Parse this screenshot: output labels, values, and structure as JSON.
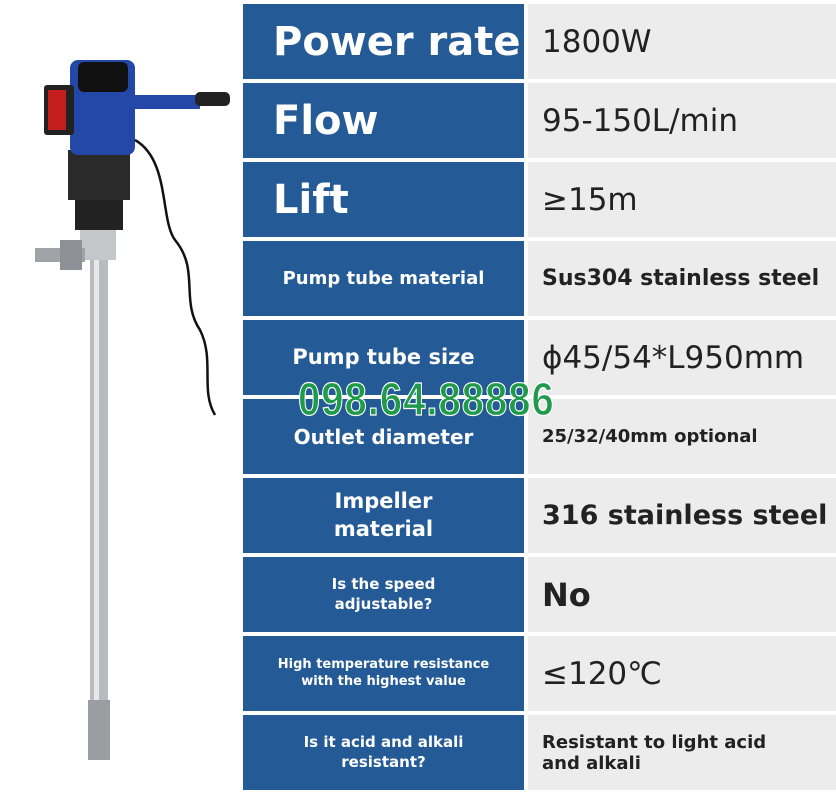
{
  "specs": [
    {
      "label": "Power rate",
      "value": "1800W"
    },
    {
      "label": "Flow",
      "value": "95-150L/min"
    },
    {
      "label": "Lift",
      "value": "≥15m"
    },
    {
      "label": "Pump tube material",
      "value": "Sus304 stainless steel"
    },
    {
      "label": "Pump tube size",
      "value": "ϕ45/54*L950mm"
    },
    {
      "label": "Outlet diameter",
      "value": "25/32/40mm optional"
    },
    {
      "label": "Impeller material",
      "value": "316 stainless steel"
    },
    {
      "label": "Is the speed adjustable?",
      "value": "No"
    },
    {
      "label": "High temperature resistance with the highest value",
      "value": "≤120℃"
    },
    {
      "label": "Is it acid and alkali resistant?",
      "value": "Resistant to light acid and alkali"
    }
  ],
  "watermark": "098.64.88886",
  "colors": {
    "label_bg": "#245a96",
    "value_bg": "#ececec",
    "watermark": "#1f9a4a",
    "pump_body": "#2448a8"
  }
}
